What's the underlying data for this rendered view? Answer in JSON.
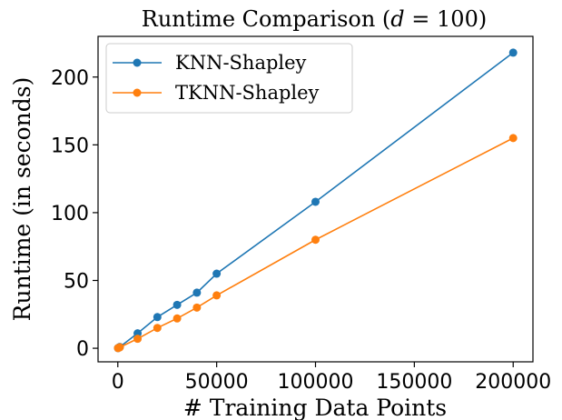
{
  "chart_data": {
    "type": "line",
    "title_text": "Runtime Comparison (",
    "title_var": "d",
    "title_rest": " = 100)",
    "xlabel": "# Training Data Points",
    "ylabel": "Runtime (in seconds)",
    "x": [
      100,
      1000,
      10000,
      20000,
      30000,
      40000,
      50000,
      100000,
      200000
    ],
    "xlim": [
      -10000,
      210000
    ],
    "ylim": [
      -10,
      230
    ],
    "xticks": [
      0,
      50000,
      100000,
      150000,
      200000
    ],
    "xtick_labels": [
      "0",
      "50000",
      "100000",
      "150000",
      "200000"
    ],
    "yticks": [
      0,
      50,
      100,
      150,
      200
    ],
    "ytick_labels": [
      "0",
      "50",
      "100",
      "150",
      "200"
    ],
    "grid": false,
    "legend_position": "top-left",
    "series": [
      {
        "name": "KNN-Shapley",
        "color": "#1f77b4",
        "values": [
          0.1,
          1,
          11,
          23,
          32,
          41,
          55,
          108,
          218
        ]
      },
      {
        "name": "TKNN-Shapley",
        "color": "#ff7f0e",
        "values": [
          0.1,
          0.7,
          7,
          15,
          22,
          30,
          39,
          80,
          155
        ]
      }
    ]
  }
}
